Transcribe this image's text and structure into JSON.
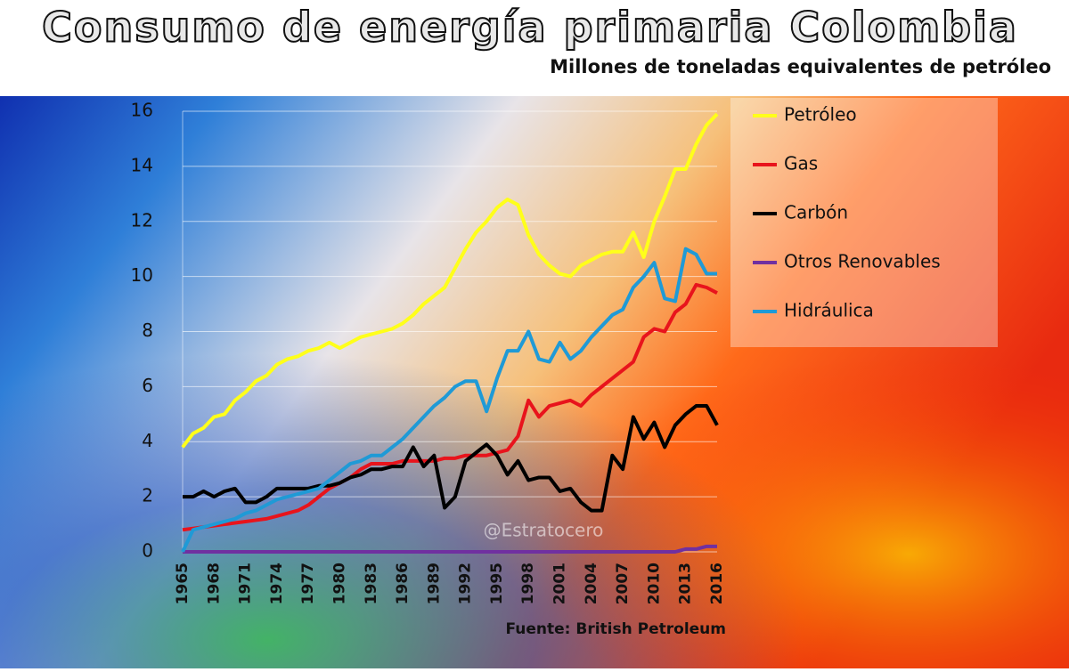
{
  "chart_data": {
    "type": "line",
    "title": "Consumo de energía primaria Colombia",
    "subtitle": "Millones de toneladas  equivalentes de petróleo",
    "source": "Fuente: British Petroleum",
    "watermark": "@Estratocero",
    "categories": [
      "1965",
      null,
      null,
      "1968",
      null,
      null,
      "1971",
      null,
      null,
      "1974",
      null,
      null,
      "1977",
      null,
      null,
      "1980",
      null,
      null,
      "1983",
      null,
      null,
      "1986",
      null,
      null,
      "1989",
      null,
      null,
      "1992",
      null,
      null,
      "1995",
      null,
      null,
      "1998",
      null,
      null,
      "2001",
      null,
      null,
      "2004",
      null,
      null,
      "2007",
      null,
      null,
      "2010",
      null,
      null,
      "2013",
      null,
      null,
      "2016"
    ],
    "ylim": [
      0,
      16
    ],
    "yticks": [
      0,
      2,
      4,
      6,
      8,
      10,
      12,
      14,
      16
    ],
    "grid": true,
    "series": [
      {
        "name": "Petróleo",
        "color": "#ffff1a",
        "values": [
          3.8,
          4.3,
          4.5,
          4.9,
          5.0,
          5.5,
          5.8,
          6.2,
          6.4,
          6.8,
          7.0,
          7.1,
          7.3,
          7.4,
          7.6,
          7.4,
          7.6,
          7.8,
          7.9,
          8.0,
          8.1,
          8.3,
          8.6,
          9.0,
          9.3,
          9.6,
          10.3,
          11.0,
          11.6,
          12.0,
          12.5,
          12.8,
          12.6,
          11.5,
          10.8,
          10.4,
          10.1,
          10.0,
          10.4,
          10.6,
          10.8,
          10.9,
          10.9,
          11.6,
          10.7,
          12.0,
          12.9,
          13.9,
          13.9,
          14.8,
          15.5,
          15.9
        ]
      },
      {
        "name": "Gas",
        "color": "#e8141c",
        "values": [
          0.8,
          0.85,
          0.9,
          0.95,
          1.0,
          1.05,
          1.1,
          1.15,
          1.2,
          1.3,
          1.4,
          1.5,
          1.7,
          2.0,
          2.3,
          2.5,
          2.7,
          3.0,
          3.2,
          3.2,
          3.2,
          3.3,
          3.3,
          3.3,
          3.3,
          3.4,
          3.4,
          3.5,
          3.5,
          3.5,
          3.6,
          3.7,
          4.2,
          5.5,
          4.9,
          5.3,
          5.4,
          5.5,
          5.3,
          5.7,
          6.0,
          6.3,
          6.6,
          6.9,
          7.8,
          8.1,
          8.0,
          8.7,
          9.0,
          9.7,
          9.6,
          9.4
        ]
      },
      {
        "name": "Carbón",
        "color": "#000000",
        "values": [
          2.0,
          2.0,
          2.2,
          2.0,
          2.2,
          2.3,
          1.8,
          1.8,
          2.0,
          2.3,
          2.3,
          2.3,
          2.3,
          2.4,
          2.4,
          2.5,
          2.7,
          2.8,
          3.0,
          3.0,
          3.1,
          3.1,
          3.8,
          3.1,
          3.5,
          1.6,
          2.0,
          3.3,
          3.6,
          3.9,
          3.5,
          2.8,
          3.3,
          2.6,
          2.7,
          2.7,
          2.2,
          2.3,
          1.8,
          1.5,
          1.5,
          3.5,
          3.0,
          4.9,
          4.1,
          4.7,
          3.8,
          4.6,
          5.0,
          5.3,
          5.3,
          4.6
        ]
      },
      {
        "name": "Otros Renovables",
        "color": "#7030a0",
        "values": [
          0,
          0,
          0,
          0,
          0,
          0,
          0,
          0,
          0,
          0,
          0,
          0,
          0,
          0,
          0,
          0,
          0,
          0,
          0,
          0,
          0,
          0,
          0,
          0,
          0,
          0,
          0,
          0,
          0,
          0,
          0,
          0,
          0,
          0,
          0,
          0,
          0,
          0,
          0,
          0,
          0,
          0,
          0,
          0,
          0,
          0,
          0,
          0,
          0.1,
          0.1,
          0.2,
          0.2
        ]
      },
      {
        "name": "Hidráulica",
        "color": "#1f9ad6",
        "values": [
          0.0,
          0.8,
          0.9,
          1.0,
          1.1,
          1.2,
          1.4,
          1.5,
          1.7,
          1.9,
          2.0,
          2.1,
          2.2,
          2.3,
          2.6,
          2.9,
          3.2,
          3.3,
          3.5,
          3.5,
          3.8,
          4.1,
          4.5,
          4.9,
          5.3,
          5.6,
          6.0,
          6.2,
          6.2,
          5.1,
          6.3,
          7.3,
          7.3,
          8.0,
          7.0,
          6.9,
          7.6,
          7.0,
          7.3,
          7.8,
          8.2,
          8.6,
          8.8,
          9.6,
          10.0,
          10.5,
          9.2,
          9.1,
          11.0,
          10.8,
          10.1,
          10.1
        ]
      }
    ]
  }
}
